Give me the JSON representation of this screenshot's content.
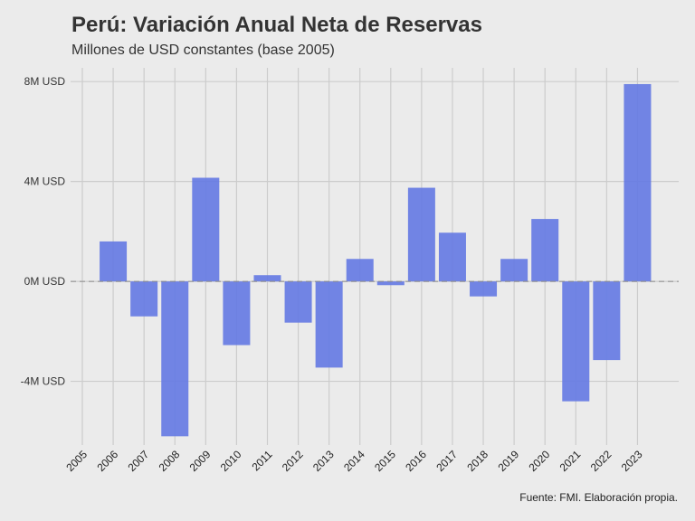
{
  "chart_data": {
    "type": "bar",
    "title": "Perú: Variación Anual Neta de Reservas",
    "subtitle": "Millones de USD constantes (base 2005)",
    "caption": "Fuente: FMI. Elaboración propia.",
    "xlabel": "",
    "ylabel": "",
    "categories": [
      "2005",
      "2006",
      "2007",
      "2008",
      "2009",
      "2010",
      "2011",
      "2012",
      "2013",
      "2014",
      "2015",
      "2016",
      "2017",
      "2018",
      "2019",
      "2020",
      "2021",
      "2022",
      "2023"
    ],
    "values": [
      0,
      1.6,
      -1.4,
      -6.2,
      4.15,
      -2.55,
      0.25,
      -1.65,
      -3.45,
      0.9,
      -0.15,
      3.75,
      1.95,
      -0.6,
      0.9,
      2.5,
      -4.8,
      -3.15,
      7.9
    ],
    "y_ticks": [
      -4,
      0,
      4,
      8
    ],
    "y_tick_labels": [
      "-4M USD",
      "0M USD",
      "4M USD",
      "8M USD"
    ],
    "bar_color": "#6479e3",
    "grid": true,
    "zero_line": "dashed"
  }
}
